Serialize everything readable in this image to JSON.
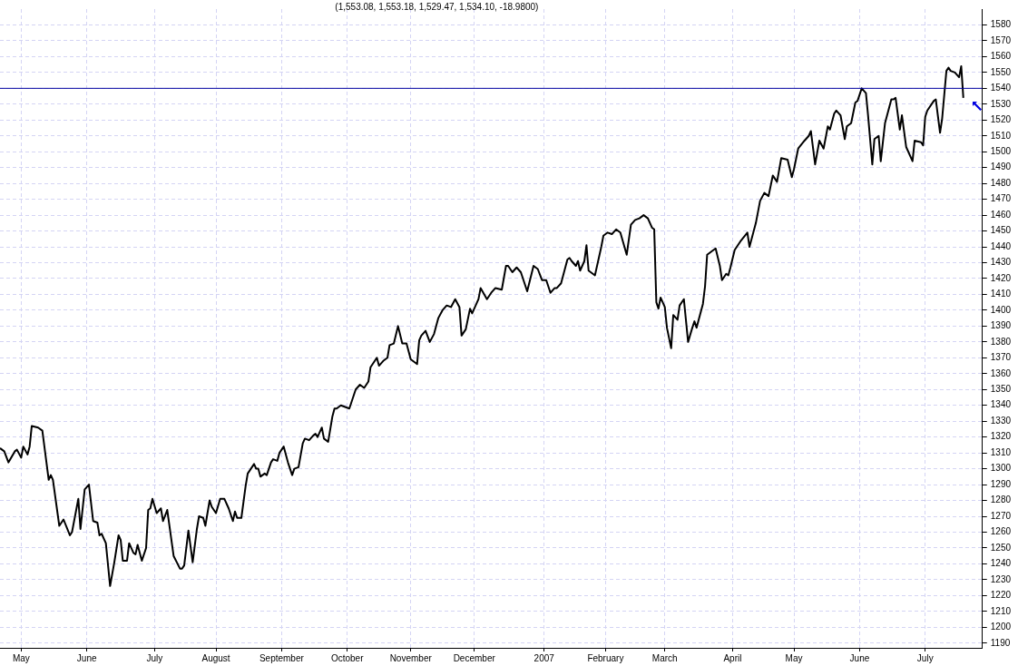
{
  "chart_data": {
    "type": "line",
    "title": "(1,553.08, 1,553.18, 1,529.47, 1,534.10, -18.9800)",
    "x": [
      "2006-04-21",
      "2006-04-23",
      "2006-04-25",
      "2006-04-28",
      "2006-04-29",
      "2006-05-01",
      "2006-05-02",
      "2006-05-04",
      "2006-05-05",
      "2006-05-06",
      "2006-05-09",
      "2006-05-11",
      "2006-05-14",
      "2006-05-15",
      "2006-05-16",
      "2006-05-19",
      "2006-05-21",
      "2006-05-24",
      "2006-05-25",
      "2006-05-28",
      "2006-05-29",
      "2006-05-31",
      "2006-06-02",
      "2006-06-04",
      "2006-06-06",
      "2006-06-07",
      "2006-06-08",
      "2006-06-10",
      "2006-06-12",
      "2006-06-14",
      "2006-06-16",
      "2006-06-17",
      "2006-06-18",
      "2006-06-20",
      "2006-06-21",
      "2006-06-23",
      "2006-06-24",
      "2006-06-25",
      "2006-06-27",
      "2006-06-29",
      "2006-06-30",
      "2006-07-01",
      "2006-07-02",
      "2006-07-04",
      "2006-07-06",
      "2006-07-07",
      "2006-07-09",
      "2006-07-12",
      "2006-07-15",
      "2006-07-16",
      "2006-07-17",
      "2006-07-19",
      "2006-07-21",
      "2006-07-23",
      "2006-07-24",
      "2006-07-26",
      "2006-07-27",
      "2006-07-29",
      "2006-07-30",
      "2006-08-01",
      "2006-08-03",
      "2006-08-05",
      "2006-08-07",
      "2006-08-09",
      "2006-08-10",
      "2006-08-11",
      "2006-08-13",
      "2006-08-15",
      "2006-08-16",
      "2006-08-17",
      "2006-08-19",
      "2006-08-20",
      "2006-08-21",
      "2006-08-22",
      "2006-08-24",
      "2006-08-25",
      "2006-08-27",
      "2006-08-28",
      "2006-08-30",
      "2006-08-31",
      "2006-09-02",
      "2006-09-04",
      "2006-09-06",
      "2006-09-07",
      "2006-09-09",
      "2006-09-11",
      "2006-09-12",
      "2006-09-14",
      "2006-09-16",
      "2006-09-17",
      "2006-09-18",
      "2006-09-20",
      "2006-09-21",
      "2006-09-23",
      "2006-09-25",
      "2006-09-26",
      "2006-09-27",
      "2006-09-29",
      "2006-10-03",
      "2006-10-06",
      "2006-10-08",
      "2006-10-10",
      "2006-10-12",
      "2006-10-13",
      "2006-10-16",
      "2006-10-17",
      "2006-10-19",
      "2006-10-21",
      "2006-10-22",
      "2006-10-24",
      "2006-10-26",
      "2006-10-28",
      "2006-10-30",
      "2006-11-01",
      "2006-11-02",
      "2006-11-04",
      "2006-11-05",
      "2006-11-06",
      "2006-11-08",
      "2006-11-10",
      "2006-11-12",
      "2006-11-14",
      "2006-11-16",
      "2006-11-18",
      "2006-11-20",
      "2006-11-22",
      "2006-11-24",
      "2006-11-25",
      "2006-11-27",
      "2006-11-29",
      "2006-11-30",
      "2006-12-03",
      "2006-12-04",
      "2006-12-07",
      "2006-12-09",
      "2006-12-11",
      "2006-12-14",
      "2006-12-16",
      "2006-12-17",
      "2006-12-19",
      "2006-12-21",
      "2006-12-23",
      "2006-12-26",
      "2006-12-29",
      "2006-12-31",
      "2007-01-02",
      "2007-01-04",
      "2007-01-06",
      "2007-01-08",
      "2007-01-09",
      "2007-01-11",
      "2007-01-14",
      "2007-01-15",
      "2007-01-16",
      "2007-01-18",
      "2007-01-19",
      "2007-01-20",
      "2007-01-22",
      "2007-01-23",
      "2007-01-24",
      "2007-01-27",
      "2007-01-30",
      "2007-01-31",
      "2007-02-02",
      "2007-02-04",
      "2007-02-06",
      "2007-02-08",
      "2007-02-11",
      "2007-02-13",
      "2007-02-15",
      "2007-02-17",
      "2007-02-19",
      "2007-02-21",
      "2007-02-23",
      "2007-02-24",
      "2007-02-25",
      "2007-02-26",
      "2007-02-27",
      "2007-03-01",
      "2007-03-02",
      "2007-03-04",
      "2007-03-05",
      "2007-03-07",
      "2007-03-08",
      "2007-03-10",
      "2007-03-12",
      "2007-03-14",
      "2007-03-15",
      "2007-03-16",
      "2007-03-19",
      "2007-03-20",
      "2007-03-21",
      "2007-03-23",
      "2007-03-25",
      "2007-03-27",
      "2007-03-28",
      "2007-03-30",
      "2007-03-31",
      "2007-04-01",
      "2007-04-03",
      "2007-04-06",
      "2007-04-09",
      "2007-04-10",
      "2007-04-12",
      "2007-04-13",
      "2007-04-15",
      "2007-04-17",
      "2007-04-19",
      "2007-04-21",
      "2007-04-23",
      "2007-04-25",
      "2007-04-28",
      "2007-04-30",
      "2007-05-01",
      "2007-05-03",
      "2007-05-06",
      "2007-05-08",
      "2007-05-09",
      "2007-05-11",
      "2007-05-13",
      "2007-05-15",
      "2007-05-17",
      "2007-05-18",
      "2007-05-20",
      "2007-05-21",
      "2007-05-23",
      "2007-05-25",
      "2007-05-26",
      "2007-05-28",
      "2007-05-30",
      "2007-05-31",
      "2007-06-02",
      "2007-06-04",
      "2007-06-05",
      "2007-06-07",
      "2007-06-08",
      "2007-06-10",
      "2007-06-11",
      "2007-06-13",
      "2007-06-16",
      "2007-06-17",
      "2007-06-18",
      "2007-06-20",
      "2007-06-21",
      "2007-06-23",
      "2007-06-26",
      "2007-06-27",
      "2007-06-30",
      "2007-07-01",
      "2007-07-02",
      "2007-07-03",
      "2007-07-06",
      "2007-07-07",
      "2007-07-09",
      "2007-07-10",
      "2007-07-12",
      "2007-07-13",
      "2007-07-14",
      "2007-07-16",
      "2007-07-18",
      "2007-07-19",
      "2007-07-20"
    ],
    "values": [
      1313,
      1311,
      1304,
      1311,
      1312,
      1307,
      1314,
      1309,
      1314,
      1327,
      1326,
      1324,
      1293,
      1296,
      1293,
      1264,
      1268,
      1258,
      1260,
      1281,
      1262,
      1287,
      1290,
      1267,
      1266,
      1258,
      1259,
      1253,
      1226,
      1241,
      1258,
      1255,
      1242,
      1242,
      1253,
      1247,
      1246,
      1252,
      1242,
      1250,
      1274,
      1275,
      1281,
      1272,
      1275,
      1267,
      1274,
      1245,
      1237,
      1237,
      1239,
      1261,
      1241,
      1262,
      1270,
      1269,
      1264,
      1280,
      1276,
      1272,
      1281,
      1281,
      1275,
      1267,
      1273,
      1269,
      1269,
      1289,
      1297,
      1299,
      1303,
      1300,
      1300,
      1295,
      1297,
      1296,
      1304,
      1306,
      1305,
      1310,
      1314,
      1304,
      1296,
      1300,
      1301,
      1316,
      1319,
      1318,
      1321,
      1322,
      1320,
      1326,
      1319,
      1317,
      1333,
      1338,
      1338,
      1340,
      1338,
      1350,
      1353,
      1351,
      1355,
      1364,
      1370,
      1365,
      1368,
      1370,
      1378,
      1379,
      1390,
      1379,
      1379,
      1369,
      1368,
      1366,
      1381,
      1384,
      1387,
      1380,
      1385,
      1395,
      1400,
      1403,
      1402,
      1407,
      1402,
      1384,
      1388,
      1401,
      1398,
      1407,
      1414,
      1407,
      1411,
      1414,
      1413,
      1428,
      1428,
      1424,
      1427,
      1424,
      1412,
      1428,
      1426,
      1419,
      1419,
      1411,
      1414,
      1414,
      1417,
      1432,
      1433,
      1431,
      1428,
      1431,
      1425,
      1431,
      1441,
      1425,
      1422,
      1440,
      1447,
      1449,
      1448,
      1451,
      1449,
      1435,
      1454,
      1457,
      1458,
      1460,
      1458,
      1452,
      1451,
      1405,
      1401,
      1408,
      1402,
      1389,
      1376,
      1397,
      1394,
      1403,
      1407,
      1380,
      1389,
      1393,
      1389,
      1404,
      1415,
      1435,
      1437,
      1439,
      1428,
      1419,
      1423,
      1422,
      1427,
      1438,
      1444,
      1449,
      1440,
      1450,
      1455,
      1469,
      1474,
      1472,
      1485,
      1481,
      1496,
      1495,
      1484,
      1489,
      1502,
      1507,
      1510,
      1513,
      1492,
      1507,
      1502,
      1516,
      1514,
      1524,
      1526,
      1523,
      1508,
      1516,
      1518,
      1531,
      1532,
      1540,
      1537,
      1523,
      1492,
      1508,
      1510,
      1494,
      1518,
      1533,
      1533,
      1534,
      1514,
      1523,
      1503,
      1494,
      1507,
      1506,
      1504,
      1522,
      1526,
      1532,
      1533,
      1512,
      1521,
      1551,
      1553,
      1551,
      1550,
      1547,
      1554,
      1534
    ],
    "color": "#000000",
    "xlim": [
      "2006-04-21",
      "2007-07-29"
    ],
    "xticks": [
      {
        "value": "2006-05-01",
        "label": "May"
      },
      {
        "value": "2006-06-01",
        "label": "June"
      },
      {
        "value": "2006-07-03",
        "label": "July"
      },
      {
        "value": "2006-08-01",
        "label": "August"
      },
      {
        "value": "2006-09-01",
        "label": "September"
      },
      {
        "value": "2006-10-02",
        "label": "October"
      },
      {
        "value": "2006-11-01",
        "label": "November"
      },
      {
        "value": "2006-12-01",
        "label": "December"
      },
      {
        "value": "2007-01-03",
        "label": "2007"
      },
      {
        "value": "2007-02-01",
        "label": "February"
      },
      {
        "value": "2007-03-01",
        "label": "March"
      },
      {
        "value": "2007-04-02",
        "label": "April"
      },
      {
        "value": "2007-05-01",
        "label": "May"
      },
      {
        "value": "2007-06-01",
        "label": "June"
      },
      {
        "value": "2007-07-02",
        "label": "July"
      }
    ],
    "ylim": [
      1187,
      1590
    ],
    "yticks": [
      1190,
      1200,
      1210,
      1220,
      1230,
      1240,
      1250,
      1260,
      1270,
      1280,
      1290,
      1300,
      1310,
      1320,
      1330,
      1340,
      1350,
      1360,
      1370,
      1380,
      1390,
      1400,
      1410,
      1420,
      1430,
      1440,
      1450,
      1460,
      1470,
      1480,
      1490,
      1500,
      1510,
      1520,
      1530,
      1540,
      1550,
      1560,
      1570,
      1580
    ],
    "ref_lines": [
      {
        "axis": "y",
        "value": 1540,
        "color": "#0000a0"
      }
    ],
    "grid": true,
    "line_style": "solid"
  }
}
